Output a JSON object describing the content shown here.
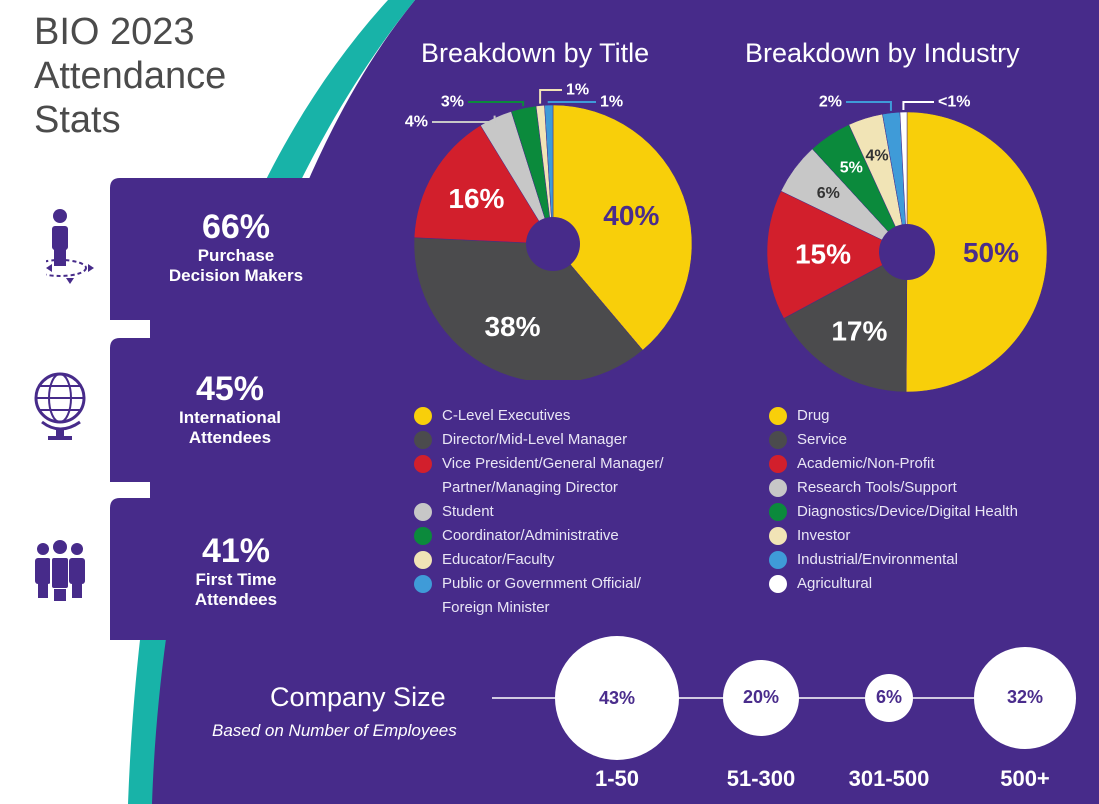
{
  "header": {
    "title_lines": [
      "BIO 2023",
      "Attendance",
      "Stats"
    ]
  },
  "stats": [
    {
      "value": "66%",
      "label_lines": [
        "Purchase",
        "Decision Makers"
      ],
      "icon": "person-decision-icon"
    },
    {
      "value": "45%",
      "label_lines": [
        "International",
        "Attendees"
      ],
      "icon": "globe-icon"
    },
    {
      "value": "41%",
      "label_lines": [
        "First Time",
        "Attendees"
      ],
      "icon": "group-icon"
    }
  ],
  "colors": {
    "background": "#472b8a",
    "teal": "#18b3a8",
    "yellow": "#f8cf0a",
    "dark_gray": "#4b4b4d",
    "red": "#d21f2c",
    "light_gray": "#c7c7c7",
    "green": "#0b8a3c",
    "cream": "#f1e4b6",
    "blue": "#3f9bd8",
    "white": "#ffffff"
  },
  "chart_data": [
    {
      "type": "pie",
      "title": "Breakdown by Title",
      "categories": [
        "C-Level Executives",
        "Director/Mid-Level Manager",
        "Vice President/General Manager/Partner/Managing Director",
        "Student",
        "Coordinator/Administrative",
        "Educator/Faculty",
        "Public or Government Official/Foreign Minister"
      ],
      "legend_lines": [
        [
          "C-Level Executives"
        ],
        [
          "Director/Mid-Level Manager"
        ],
        [
          "Vice President/General Manager/",
          "Partner/Managing Director"
        ],
        [
          "Student"
        ],
        [
          "Coordinator/Administrative"
        ],
        [
          "Educator/Faculty"
        ],
        [
          "Public or Government Official/",
          "Foreign Minister"
        ]
      ],
      "values": [
        40,
        38,
        16,
        4,
        3,
        1,
        1
      ],
      "labels": [
        "40%",
        "38%",
        "16%",
        "4%",
        "3%",
        "1%",
        "1%"
      ],
      "colors": [
        "#f8cf0a",
        "#4b4b4d",
        "#d21f2c",
        "#c7c7c7",
        "#0b8a3c",
        "#f1e4b6",
        "#3f9bd8"
      ]
    },
    {
      "type": "pie",
      "title": "Breakdown by Industry",
      "categories": [
        "Drug",
        "Service",
        "Academic/Non-Profit",
        "Research Tools/Support",
        "Diagnostics/Device/Digital Health",
        "Investor",
        "Industrial/Environmental",
        "Agricultural"
      ],
      "legend_lines": [
        [
          "Drug"
        ],
        [
          "Service"
        ],
        [
          "Academic/Non-Profit"
        ],
        [
          "Research Tools/Support"
        ],
        [
          "Diagnostics/Device/Digital Health"
        ],
        [
          "Investor"
        ],
        [
          "Industrial/Environmental"
        ],
        [
          "Agricultural"
        ]
      ],
      "values": [
        50,
        17,
        15,
        6,
        5,
        4,
        2,
        0.8
      ],
      "labels": [
        "50%",
        "17%",
        "15%",
        "6%",
        "5%",
        "4%",
        "2%",
        "<1%"
      ],
      "colors": [
        "#f8cf0a",
        "#4b4b4d",
        "#d21f2c",
        "#c7c7c7",
        "#0b8a3c",
        "#f1e4b6",
        "#3f9bd8",
        "#ffffff"
      ]
    },
    {
      "type": "bubble",
      "title": "Company Size",
      "subtitle": "Based on Number of Employees",
      "categories": [
        "1-50",
        "51-300",
        "301-500",
        "500+"
      ],
      "values": [
        43,
        20,
        6,
        32
      ],
      "labels": [
        "43%",
        "20%",
        "6%",
        "32%"
      ]
    }
  ]
}
